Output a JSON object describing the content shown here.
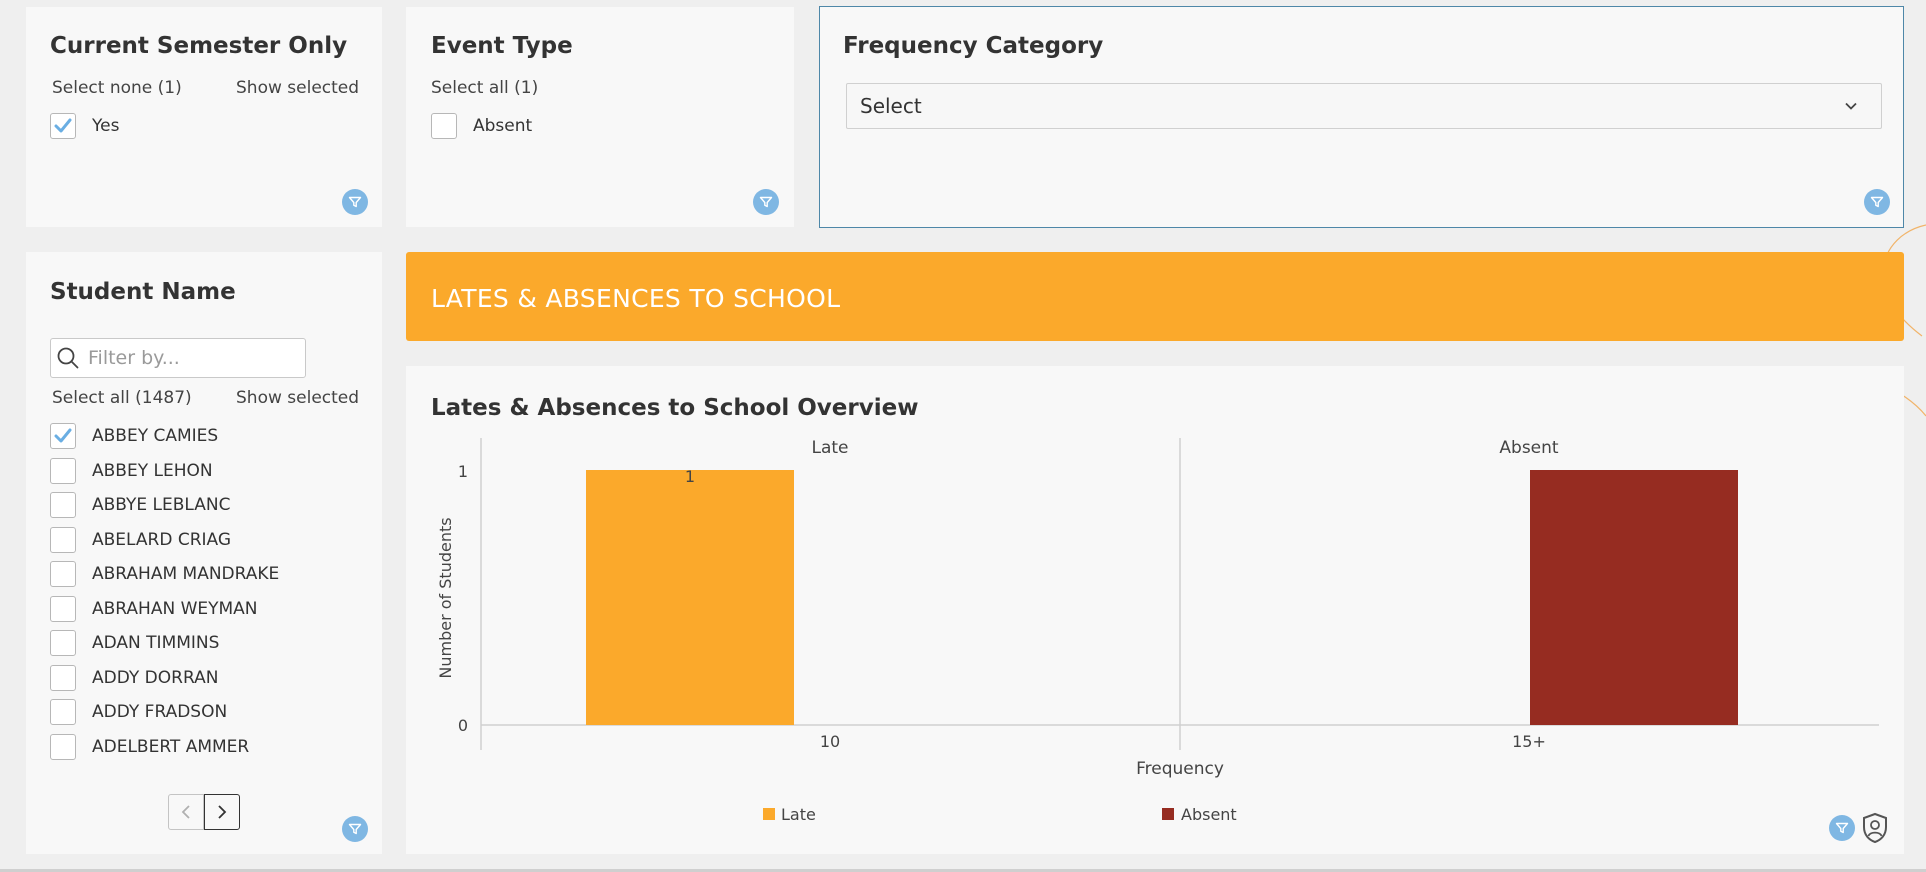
{
  "filters": {
    "current_semester": {
      "title": "Current Semester Only",
      "select_link": "Select none (1)",
      "show_selected": "Show selected",
      "options": [
        {
          "label": "Yes",
          "checked": true
        }
      ]
    },
    "event_type": {
      "title": "Event Type",
      "select_link": "Select all (1)",
      "options": [
        {
          "label": "Absent",
          "checked": false
        }
      ]
    },
    "frequency_category": {
      "title": "Frequency Category",
      "select_value": "Select"
    },
    "student_name": {
      "title": "Student Name",
      "search_placeholder": "Filter by...",
      "select_link": "Select all (1487)",
      "show_selected": "Show selected",
      "students": [
        {
          "name": "ABBEY CAMIES",
          "checked": true
        },
        {
          "name": "ABBEY LEHON",
          "checked": false
        },
        {
          "name": "ABBYE LEBLANC",
          "checked": false
        },
        {
          "name": "ABELARD CRIAG",
          "checked": false
        },
        {
          "name": "ABRAHAM MANDRAKE",
          "checked": false
        },
        {
          "name": "ABRAHAN WEYMAN",
          "checked": false
        },
        {
          "name": "ADAN TIMMINS",
          "checked": false
        },
        {
          "name": "ADDY DORRAN",
          "checked": false
        },
        {
          "name": "ADDY FRADSON",
          "checked": false
        },
        {
          "name": "ADELBERT AMMER",
          "checked": false
        }
      ]
    }
  },
  "banner": {
    "title": "LATES & ABSENCES TO SCHOOL"
  },
  "chart": {
    "title": "Lates & Absences to School Overview"
  },
  "colors": {
    "late": "#fba92b",
    "absent": "#962c21",
    "banner": "#fba92b",
    "filter_badge": "#7fb7e3",
    "checkmark": "#6aaee3"
  },
  "icons": {
    "filter_badge": "filter-icon",
    "search": "search-icon",
    "dropdown": "chevron-down-icon",
    "pager_prev": "chevron-left-icon",
    "pager_next": "chevron-right-icon",
    "shield": "user-shield-icon"
  },
  "chart_data": {
    "type": "bar",
    "facets": [
      "Late",
      "Absent"
    ],
    "categories": [
      "10",
      "15+"
    ],
    "series": [
      {
        "name": "Late",
        "values": [
          1,
          null
        ]
      },
      {
        "name": "Absent",
        "values": [
          null,
          1
        ]
      }
    ],
    "data_labels": [
      {
        "facet": "Late",
        "category": "10",
        "text": "1"
      }
    ],
    "xlabel": "Frequency",
    "ylabel": "Number of Students",
    "yticks": [
      0,
      1
    ],
    "ylim": [
      0,
      1
    ],
    "legend": [
      "Late",
      "Absent"
    ],
    "legend_position": "bottom",
    "grid": false
  }
}
